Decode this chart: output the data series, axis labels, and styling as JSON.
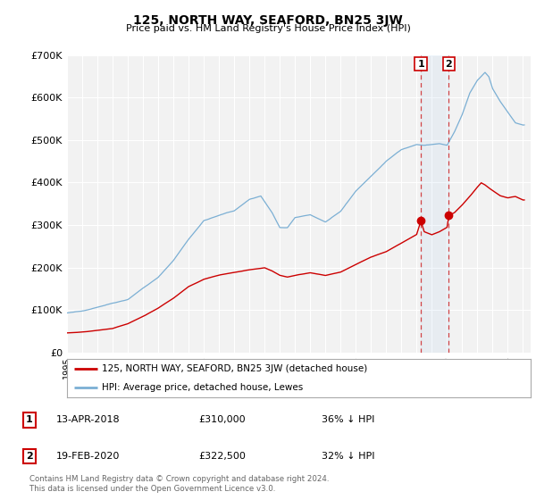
{
  "title": "125, NORTH WAY, SEAFORD, BN25 3JW",
  "subtitle": "Price paid vs. HM Land Registry's House Price Index (HPI)",
  "ylim": [
    0,
    700000
  ],
  "yticks": [
    0,
    100000,
    200000,
    300000,
    400000,
    500000,
    600000,
    700000
  ],
  "ytick_labels": [
    "£0",
    "£100K",
    "£200K",
    "£300K",
    "£400K",
    "£500K",
    "£600K",
    "£700K"
  ],
  "xlim_start": 1995.0,
  "xlim_end": 2025.5,
  "background_color": "#ffffff",
  "plot_bg_color": "#f2f2f2",
  "grid_color": "#ffffff",
  "hpi_color": "#7bafd4",
  "price_color": "#cc0000",
  "transaction1_date": "13-APR-2018",
  "transaction1_price": "£310,000",
  "transaction1_note": "36% ↓ HPI",
  "transaction1_year": 2018.28,
  "transaction1_value": 310000,
  "transaction2_date": "19-FEB-2020",
  "transaction2_price": "£322,500",
  "transaction2_note": "32% ↓ HPI",
  "transaction2_year": 2020.12,
  "transaction2_value": 322500,
  "legend_line1": "125, NORTH WAY, SEAFORD, BN25 3JW (detached house)",
  "legend_line2": "HPI: Average price, detached house, Lewes",
  "footer": "Contains HM Land Registry data © Crown copyright and database right 2024.\nThis data is licensed under the Open Government Licence v3.0."
}
